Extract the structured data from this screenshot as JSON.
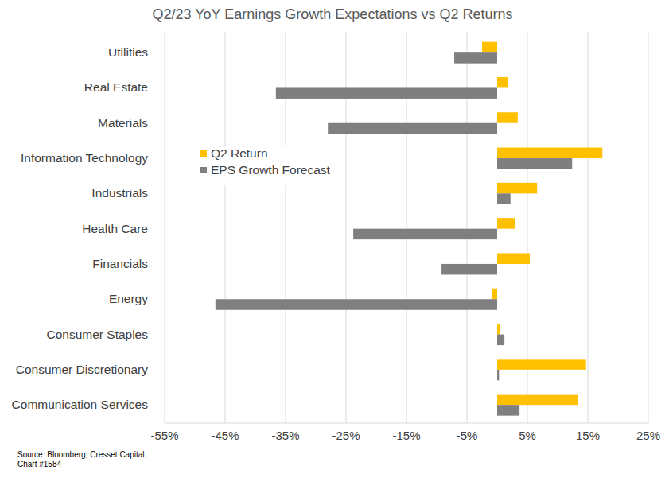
{
  "chart_data": {
    "type": "bar",
    "orientation": "horizontal",
    "title": "Q2/23 YoY Earnings Growth Expectations vs Q2 Returns",
    "categories": [
      "Utilities",
      "Real Estate",
      "Materials",
      "Information Technology",
      "Industrials",
      "Health Care",
      "Financials",
      "Energy",
      "Consumer Staples",
      "Consumer Discretionary",
      "Communication Services"
    ],
    "series": [
      {
        "name": "Q2 Return",
        "color": "#ffc000",
        "values": [
          -2.5,
          1.8,
          3.4,
          17.4,
          6.6,
          3.0,
          5.4,
          -0.9,
          0.5,
          14.7,
          13.3
        ]
      },
      {
        "name": "EPS Growth Forecast",
        "color": "#7f7f7f",
        "values": [
          -7.1,
          -36.6,
          -28.0,
          12.4,
          2.2,
          -23.8,
          -9.2,
          -46.6,
          1.2,
          0.3,
          3.7
        ]
      }
    ],
    "xlim": [
      -55,
      25
    ],
    "xticks": [
      {
        "value": -55,
        "label": "-55%"
      },
      {
        "value": -45,
        "label": "-45%"
      },
      {
        "value": -35,
        "label": "-35%"
      },
      {
        "value": -25,
        "label": "-25%"
      },
      {
        "value": -15,
        "label": "-15%"
      },
      {
        "value": -5,
        "label": "-5%"
      },
      {
        "value": 5,
        "label": "5%"
      },
      {
        "value": 15,
        "label": "15%"
      },
      {
        "value": 25,
        "label": "25%"
      }
    ],
    "grid": true,
    "legend": "left",
    "notes": [
      "Source: Bloomberg; Cresset Capital.",
      "Chart #1584"
    ]
  }
}
